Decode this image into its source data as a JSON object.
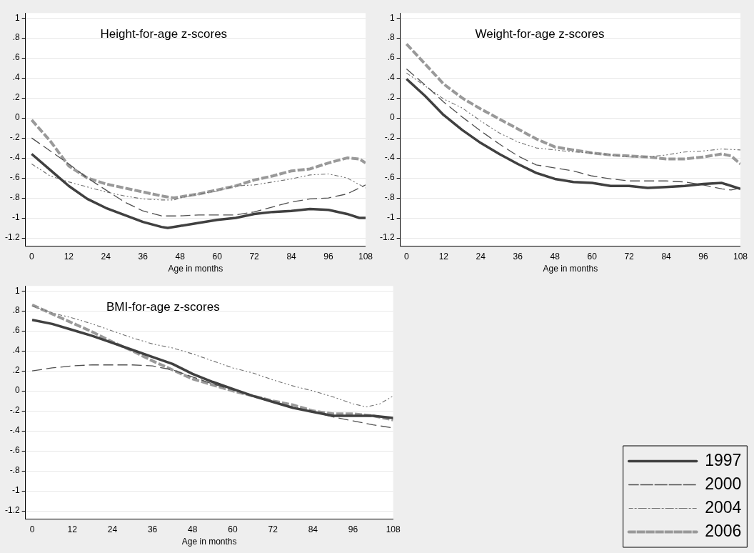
{
  "chart_data": [
    {
      "type": "line",
      "title": "Height-for-age z-scores",
      "xlabel": "Age in months",
      "xlim": [
        -2,
        108
      ],
      "xticks": [
        0,
        12,
        24,
        36,
        48,
        60,
        72,
        84,
        96,
        108
      ],
      "ylim": [
        -1.28,
        1.05
      ],
      "yticks": [
        {
          "value": -1.2,
          "label": "-1.2"
        },
        -1,
        {
          "value": -0.8,
          "label": "-.8"
        },
        {
          "value": -0.6,
          "label": "-.6"
        },
        {
          "value": -0.4,
          "label": "-.4"
        },
        {
          "value": -0.2,
          "label": "-.2"
        },
        0,
        {
          "value": 0.2,
          "label": ".2"
        },
        {
          "value": 0.4,
          "label": ".4"
        },
        {
          "value": 0.6,
          "label": ".6"
        },
        {
          "value": 0.8,
          "label": ".8"
        },
        1
      ],
      "grid": "y",
      "legend": false,
      "series": [
        {
          "color": "#404040",
          "line_style": "solid",
          "x": [
            0,
            6,
            12,
            18,
            24,
            30,
            36,
            42,
            44,
            48,
            54,
            60,
            66,
            72,
            78,
            84,
            90,
            96,
            102,
            106,
            108
          ],
          "values": [
            -0.36,
            -0.52,
            -0.68,
            -0.81,
            -0.9,
            -0.97,
            -1.04,
            -1.09,
            -1.1,
            -1.08,
            -1.05,
            -1.02,
            -1,
            -0.96,
            -0.94,
            -0.93,
            -0.91,
            -0.92,
            -0.96,
            -1,
            -1
          ]
        },
        {
          "color": "#505050",
          "line_style": "dashed",
          "x": [
            0,
            6,
            12,
            18,
            24,
            30,
            36,
            42,
            48,
            54,
            60,
            66,
            72,
            78,
            84,
            90,
            96,
            102,
            108
          ],
          "values": [
            -0.2,
            -0.33,
            -0.46,
            -0.6,
            -0.72,
            -0.84,
            -0.93,
            -0.98,
            -0.98,
            -0.97,
            -0.97,
            -0.97,
            -0.94,
            -0.89,
            -0.84,
            -0.81,
            -0.8,
            -0.76,
            -0.67
          ]
        },
        {
          "color": "#707070",
          "line_style": "dotted",
          "x": [
            0,
            6,
            12,
            18,
            24,
            30,
            36,
            42,
            46,
            48,
            54,
            60,
            66,
            72,
            78,
            84,
            90,
            96,
            102,
            108
          ],
          "values": [
            -0.46,
            -0.58,
            -0.64,
            -0.69,
            -0.74,
            -0.78,
            -0.81,
            -0.82,
            -0.82,
            -0.8,
            -0.76,
            -0.73,
            -0.68,
            -0.67,
            -0.64,
            -0.61,
            -0.57,
            -0.56,
            -0.6,
            -0.7
          ]
        },
        {
          "color": "#999999",
          "line_style": "dashed",
          "x": [
            0,
            6,
            12,
            18,
            24,
            30,
            36,
            42,
            46,
            48,
            54,
            60,
            66,
            72,
            78,
            84,
            90,
            96,
            102,
            106,
            108
          ],
          "values": [
            -0.02,
            -0.23,
            -0.48,
            -0.6,
            -0.66,
            -0.7,
            -0.74,
            -0.78,
            -0.8,
            -0.79,
            -0.76,
            -0.72,
            -0.68,
            -0.62,
            -0.58,
            -0.53,
            -0.51,
            -0.45,
            -0.4,
            -0.41,
            -0.45
          ]
        }
      ]
    },
    {
      "type": "line",
      "title": "Weight-for-age z-scores",
      "xlabel": "Age in months",
      "xlim": [
        -2,
        108
      ],
      "xticks": [
        0,
        12,
        24,
        36,
        48,
        60,
        72,
        84,
        96,
        108
      ],
      "ylim": [
        -1.28,
        1.05
      ],
      "yticks": [
        {
          "value": -1.2,
          "label": "-1.2"
        },
        -1,
        {
          "value": -0.8,
          "label": "-.8"
        },
        {
          "value": -0.6,
          "label": "-.6"
        },
        {
          "value": -0.4,
          "label": "-.4"
        },
        {
          "value": -0.2,
          "label": "-.2"
        },
        0,
        {
          "value": 0.2,
          "label": ".2"
        },
        {
          "value": 0.4,
          "label": ".4"
        },
        {
          "value": 0.6,
          "label": ".6"
        },
        {
          "value": 0.8,
          "label": ".8"
        },
        1
      ],
      "grid": "y",
      "legend": false,
      "series": [
        {
          "color": "#404040",
          "line_style": "solid",
          "x": [
            0,
            6,
            12,
            18,
            24,
            30,
            36,
            42,
            48,
            54,
            60,
            66,
            72,
            78,
            84,
            90,
            96,
            102,
            108
          ],
          "values": [
            0.39,
            0.22,
            0.03,
            -0.12,
            -0.25,
            -0.36,
            -0.46,
            -0.55,
            -0.61,
            -0.64,
            -0.65,
            -0.68,
            -0.68,
            -0.7,
            -0.69,
            -0.68,
            -0.66,
            -0.65,
            -0.71
          ]
        },
        {
          "color": "#505050",
          "line_style": "dashed",
          "x": [
            0,
            6,
            12,
            18,
            24,
            30,
            36,
            42,
            48,
            54,
            60,
            66,
            72,
            78,
            84,
            90,
            96,
            102,
            105,
            108
          ],
          "values": [
            0.49,
            0.33,
            0.16,
            0.01,
            -0.13,
            -0.26,
            -0.38,
            -0.47,
            -0.5,
            -0.53,
            -0.58,
            -0.61,
            -0.63,
            -0.63,
            -0.63,
            -0.64,
            -0.67,
            -0.71,
            -0.72,
            -0.7
          ]
        },
        {
          "color": "#707070",
          "line_style": "dotted",
          "x": [
            0,
            6,
            12,
            18,
            24,
            30,
            36,
            42,
            48,
            54,
            60,
            66,
            72,
            78,
            84,
            90,
            96,
            102,
            108
          ],
          "values": [
            0.45,
            0.32,
            0.19,
            0.1,
            -0.03,
            -0.15,
            -0.24,
            -0.3,
            -0.32,
            -0.34,
            -0.35,
            -0.37,
            -0.39,
            -0.39,
            -0.37,
            -0.34,
            -0.33,
            -0.31,
            -0.32
          ]
        },
        {
          "color": "#999999",
          "line_style": "dashed",
          "x": [
            0,
            6,
            12,
            18,
            24,
            30,
            36,
            42,
            48,
            54,
            60,
            66,
            72,
            78,
            84,
            90,
            96,
            102,
            105,
            108
          ],
          "values": [
            0.74,
            0.54,
            0.34,
            0.2,
            0.09,
            -0.01,
            -0.11,
            -0.21,
            -0.29,
            -0.32,
            -0.35,
            -0.37,
            -0.38,
            -0.39,
            -0.41,
            -0.41,
            -0.39,
            -0.36,
            -0.38,
            -0.46
          ]
        }
      ]
    },
    {
      "type": "line",
      "title": "BMI-for-age z-scores",
      "xlabel": "Age in months",
      "xlim": [
        -2,
        108
      ],
      "xticks": [
        0,
        12,
        24,
        36,
        48,
        60,
        72,
        84,
        96,
        108
      ],
      "ylim": [
        -1.28,
        1.05
      ],
      "yticks": [
        {
          "value": -1.2,
          "label": "-1.2"
        },
        -1,
        {
          "value": -0.8,
          "label": "-.8"
        },
        {
          "value": -0.6,
          "label": "-.6"
        },
        {
          "value": -0.4,
          "label": "-.4"
        },
        {
          "value": -0.2,
          "label": "-.2"
        },
        0,
        {
          "value": 0.2,
          "label": ".2"
        },
        {
          "value": 0.4,
          "label": ".4"
        },
        {
          "value": 0.6,
          "label": ".6"
        },
        {
          "value": 0.8,
          "label": ".8"
        },
        1
      ],
      "grid": "y",
      "legend": "bottom right",
      "series": [
        {
          "name": "1997",
          "color": "#404040",
          "line_style": "solid",
          "x": [
            0,
            6,
            12,
            18,
            24,
            30,
            36,
            42,
            48,
            54,
            60,
            66,
            72,
            78,
            84,
            90,
            96,
            102,
            108
          ],
          "values": [
            0.71,
            0.67,
            0.61,
            0.55,
            0.48,
            0.41,
            0.34,
            0.27,
            0.17,
            0.09,
            0.02,
            -0.05,
            -0.11,
            -0.17,
            -0.21,
            -0.25,
            -0.25,
            -0.25,
            -0.27
          ]
        },
        {
          "name": "2000",
          "color": "#505050",
          "line_style": "dashed",
          "x": [
            0,
            6,
            12,
            18,
            24,
            30,
            36,
            42,
            48,
            54,
            60,
            66,
            72,
            78,
            84,
            90,
            96,
            102,
            108
          ],
          "values": [
            0.2,
            0.23,
            0.25,
            0.26,
            0.26,
            0.26,
            0.25,
            0.21,
            0.14,
            0.07,
            0.01,
            -0.05,
            -0.11,
            -0.16,
            -0.21,
            -0.26,
            -0.3,
            -0.34,
            -0.37
          ]
        },
        {
          "name": "2004",
          "color": "#707070",
          "line_style": "dotted",
          "x": [
            0,
            6,
            12,
            18,
            24,
            30,
            36,
            42,
            48,
            54,
            60,
            66,
            72,
            78,
            84,
            90,
            96,
            100,
            104,
            108
          ],
          "values": [
            0.85,
            0.78,
            0.73,
            0.67,
            0.6,
            0.53,
            0.47,
            0.43,
            0.37,
            0.3,
            0.23,
            0.18,
            0.11,
            0.05,
            0,
            -0.06,
            -0.13,
            -0.16,
            -0.13,
            -0.05
          ]
        },
        {
          "name": "2006",
          "color": "#999999",
          "line_style": "dashed",
          "x": [
            0,
            6,
            12,
            18,
            24,
            30,
            36,
            42,
            48,
            54,
            60,
            66,
            72,
            78,
            84,
            90,
            96,
            102,
            108
          ],
          "values": [
            0.86,
            0.77,
            0.68,
            0.59,
            0.49,
            0.4,
            0.3,
            0.21,
            0.12,
            0.06,
            0,
            -0.05,
            -0.1,
            -0.14,
            -0.2,
            -0.23,
            -0.23,
            -0.25,
            -0.29
          ]
        }
      ]
    }
  ]
}
